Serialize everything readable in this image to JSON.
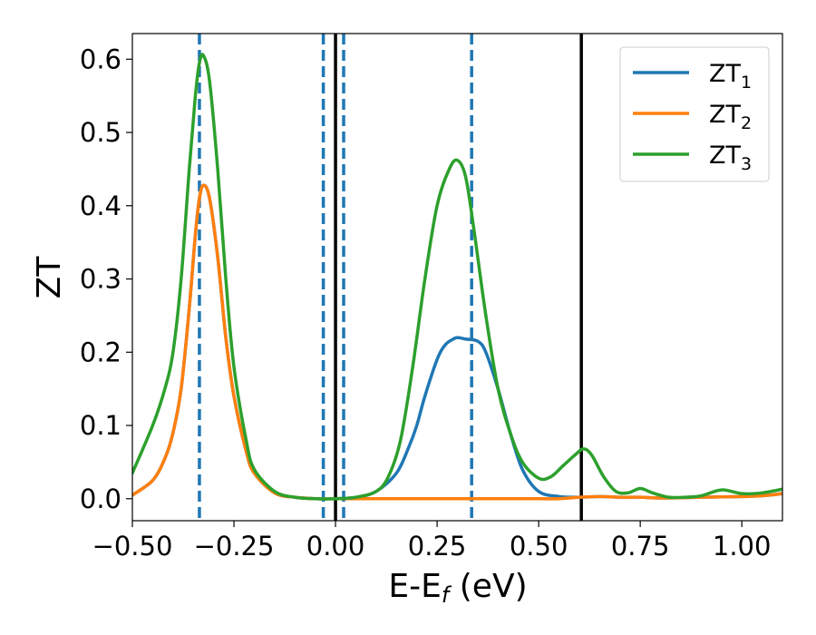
{
  "chart_data": {
    "type": "line",
    "title": "",
    "xlabel": "E-E",
    "xlabel_sub": "f",
    "xlabel_unit": " (eV)",
    "ylabel": "ZT",
    "xlim": [
      -0.5,
      1.1
    ],
    "ylim": [
      -0.03,
      0.635
    ],
    "grid": false,
    "legend_position": "top-right",
    "x_ticks": [
      -0.5,
      -0.25,
      0.0,
      0.25,
      0.5,
      0.75,
      1.0
    ],
    "x_tick_labels": [
      "−0.50",
      "−0.25",
      "0.00",
      "0.25",
      "0.50",
      "0.75",
      "1.00"
    ],
    "y_ticks": [
      0.0,
      0.1,
      0.2,
      0.3,
      0.4,
      0.5,
      0.6
    ],
    "y_tick_labels": [
      "0.0",
      "0.1",
      "0.2",
      "0.3",
      "0.4",
      "0.5",
      "0.6"
    ],
    "vlines_dashed": {
      "color": "#1f77b4",
      "x": [
        -0.335,
        -0.03,
        0.02,
        0.335
      ]
    },
    "vlines_solid": {
      "color": "#000000",
      "x": [
        0.0,
        0.605
      ]
    },
    "series": [
      {
        "name": "ZT",
        "sub": "1",
        "color": "#1f77b4",
        "x": [
          -0.5,
          -0.45,
          -0.42,
          -0.4,
          -0.38,
          -0.36,
          -0.345,
          -0.335,
          -0.325,
          -0.31,
          -0.29,
          -0.27,
          -0.25,
          -0.22,
          -0.2,
          -0.15,
          -0.1,
          -0.05,
          0.0,
          0.05,
          0.1,
          0.15,
          0.18,
          0.2,
          0.22,
          0.25,
          0.27,
          0.29,
          0.3,
          0.32,
          0.35,
          0.37,
          0.4,
          0.43,
          0.46,
          0.5,
          0.55,
          0.6,
          0.65,
          0.7,
          0.75,
          0.8,
          0.9,
          1.0,
          1.05,
          1.1
        ],
        "y": [
          0.005,
          0.025,
          0.055,
          0.09,
          0.15,
          0.26,
          0.36,
          0.41,
          0.428,
          0.41,
          0.33,
          0.22,
          0.14,
          0.065,
          0.035,
          0.008,
          0.002,
          0.0,
          0.0,
          0.002,
          0.01,
          0.035,
          0.07,
          0.1,
          0.14,
          0.19,
          0.21,
          0.218,
          0.22,
          0.218,
          0.215,
          0.2,
          0.15,
          0.09,
          0.04,
          0.01,
          0.003,
          0.002,
          0.003,
          0.002,
          0.002,
          0.001,
          0.002,
          0.003,
          0.004,
          0.007
        ]
      },
      {
        "name": "ZT",
        "sub": "2",
        "color": "#ff7f0e",
        "x": [
          -0.5,
          -0.45,
          -0.42,
          -0.4,
          -0.38,
          -0.36,
          -0.345,
          -0.335,
          -0.325,
          -0.31,
          -0.29,
          -0.27,
          -0.25,
          -0.22,
          -0.2,
          -0.15,
          -0.1,
          -0.05,
          0.0,
          0.05,
          0.1,
          0.15,
          0.2,
          0.25,
          0.3,
          0.35,
          0.4,
          0.45,
          0.5,
          0.55,
          0.6,
          0.65,
          0.7,
          0.75,
          0.8,
          0.9,
          1.0,
          1.05,
          1.1
        ],
        "y": [
          0.005,
          0.025,
          0.055,
          0.09,
          0.15,
          0.26,
          0.36,
          0.41,
          0.428,
          0.41,
          0.33,
          0.22,
          0.14,
          0.065,
          0.035,
          0.008,
          0.002,
          0.0,
          0.0,
          0.0,
          0.0,
          0.0,
          0.0,
          0.0,
          0.0,
          0.0,
          0.0,
          0.0,
          0.0,
          0.0,
          0.002,
          0.003,
          0.002,
          0.002,
          0.001,
          0.002,
          0.003,
          0.004,
          0.007
        ]
      },
      {
        "name": "ZT",
        "sub": "3",
        "color": "#2ca02c",
        "x": [
          -0.5,
          -0.45,
          -0.42,
          -0.4,
          -0.38,
          -0.36,
          -0.345,
          -0.335,
          -0.325,
          -0.31,
          -0.29,
          -0.27,
          -0.25,
          -0.22,
          -0.2,
          -0.15,
          -0.1,
          -0.05,
          0.0,
          0.05,
          0.1,
          0.13,
          0.16,
          0.19,
          0.22,
          0.25,
          0.28,
          0.3,
          0.32,
          0.34,
          0.37,
          0.4,
          0.43,
          0.46,
          0.5,
          0.53,
          0.56,
          0.59,
          0.61,
          0.63,
          0.66,
          0.69,
          0.72,
          0.75,
          0.78,
          0.82,
          0.86,
          0.9,
          0.95,
          1.0,
          1.05,
          1.1
        ],
        "y": [
          0.035,
          0.1,
          0.15,
          0.2,
          0.3,
          0.45,
          0.55,
          0.595,
          0.605,
          0.57,
          0.45,
          0.3,
          0.18,
          0.08,
          0.04,
          0.01,
          0.002,
          0.0,
          0.0,
          0.002,
          0.01,
          0.03,
          0.08,
          0.18,
          0.3,
          0.4,
          0.45,
          0.462,
          0.44,
          0.37,
          0.25,
          0.15,
          0.09,
          0.05,
          0.028,
          0.03,
          0.045,
          0.06,
          0.068,
          0.06,
          0.03,
          0.01,
          0.008,
          0.014,
          0.008,
          0.002,
          0.002,
          0.004,
          0.012,
          0.007,
          0.008,
          0.013
        ]
      }
    ]
  }
}
